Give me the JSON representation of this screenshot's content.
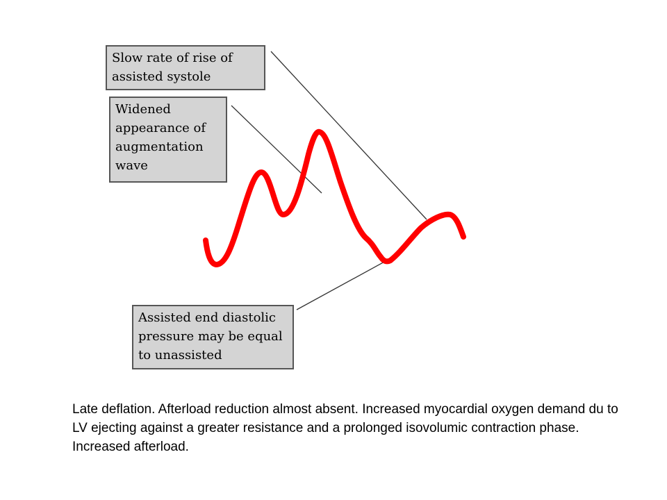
{
  "labels": {
    "slow_rise": "Slow rate of rise of\nassisted systole",
    "widened": "Widened\nappearance of\naugmentation\nwave",
    "end_diastolic": "Assisted end diastolic\npressure may be equal\nto unassisted"
  },
  "caption": "Late deflation. Afterload reduction almost absent. Increased myocardial oxygen demand du to LV ejecting against a greater resistance and a prolonged isovolumic contraction phase. Increased afterload.",
  "colors": {
    "waveform": "#ff0000",
    "leader_line": "#333333",
    "box_fill": "#d4d4d4",
    "box_border": "#555555"
  }
}
